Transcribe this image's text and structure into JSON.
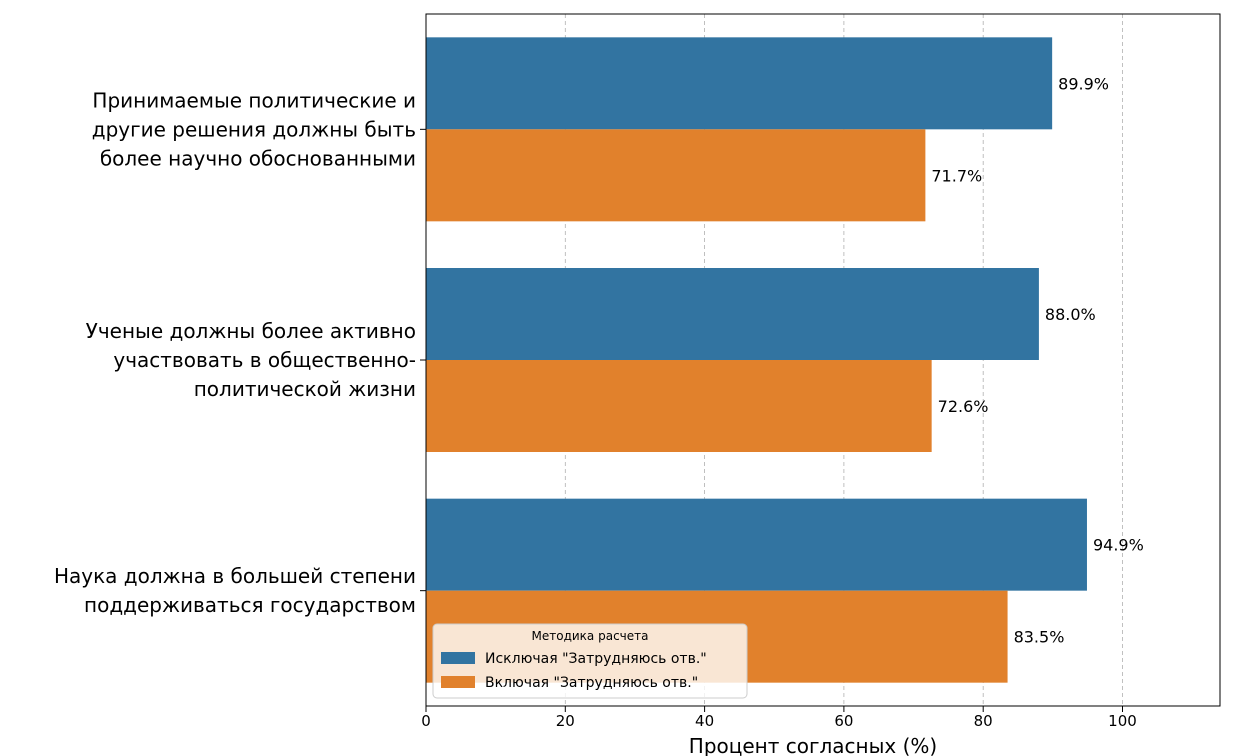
{
  "chart_data": {
    "type": "bar",
    "orientation": "horizontal",
    "categories": [
      [
        "Принимаемые политические и",
        "другие решения должны быть",
        "более научно обоснованными"
      ],
      [
        "Ученые должны более активно",
        "участвовать в общественно-",
        "политической жизни"
      ],
      [
        "Наука должна в большей степени",
        "поддерживаться государством"
      ]
    ],
    "series": [
      {
        "name": "Исключая \"Затрудняюсь отв.\"",
        "values": [
          89.9,
          88.0,
          94.9
        ],
        "labels": [
          "89.9%",
          "88.0%",
          "94.9%"
        ],
        "color": "#3274a1"
      },
      {
        "name": "Включая \"Затрудняюсь отв.\"",
        "values": [
          71.7,
          72.6,
          83.5
        ],
        "labels": [
          "71.7%",
          "72.6%",
          "83.5%"
        ],
        "color": "#e1812c"
      }
    ],
    "xlabel": "Процент согласных (%)",
    "ylabel": "",
    "xlim": [
      0,
      114
    ],
    "xticks": [
      0,
      20,
      40,
      60,
      80,
      100
    ],
    "grid": "x-dashed",
    "legend": {
      "title": "Методика расчета",
      "placement": "lower-left"
    }
  }
}
